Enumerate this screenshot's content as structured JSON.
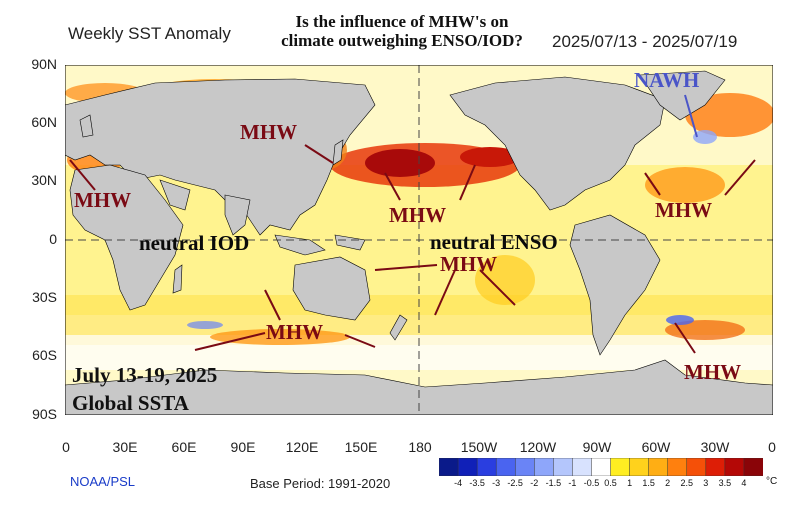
{
  "header": {
    "left_title": "Weekly SST Anomaly",
    "question_line1": "Is the influence of MHW's on",
    "question_line2": "climate outweighing ENSO/IOD?",
    "date_range": "2025/07/13 - 2025/07/19"
  },
  "axes": {
    "lat_labels": [
      "90N",
      "60N",
      "30N",
      "0",
      "30S",
      "60S",
      "90S"
    ],
    "lon_labels": [
      "0",
      "30E",
      "60E",
      "90E",
      "120E",
      "150E",
      "180",
      "150W",
      "120W",
      "90W",
      "60W",
      "30W",
      "0"
    ]
  },
  "annotations": {
    "mhw": "MHW",
    "nawh": "NAWH",
    "neutral_iod": "neutral IOD",
    "neutral_enso": "neutral ENSO",
    "date_line1": "July 13-19, 2025",
    "date_line2": "Global SSTA"
  },
  "footer": {
    "source": "NOAA/PSL",
    "base_period": "Base Period: 1991-2020"
  },
  "colorbar": {
    "labels": [
      "-4",
      "-3.5",
      "-3",
      "-2.5",
      "-2",
      "-1.5",
      "-1",
      "-0.5",
      "0.5",
      "1",
      "1.5",
      "2",
      "2.5",
      "3",
      "3.5",
      "4"
    ],
    "unit": "°C",
    "colors": [
      "#0a1a8a",
      "#1020b8",
      "#2a3ee0",
      "#4a64f0",
      "#6a84f6",
      "#8ea6fa",
      "#b4c6fc",
      "#d8e2fe",
      "#ffffff",
      "#ffee22",
      "#ffd21c",
      "#ffae14",
      "#ff800e",
      "#f55008",
      "#dd1e06",
      "#b40806",
      "#8a0408"
    ]
  }
}
